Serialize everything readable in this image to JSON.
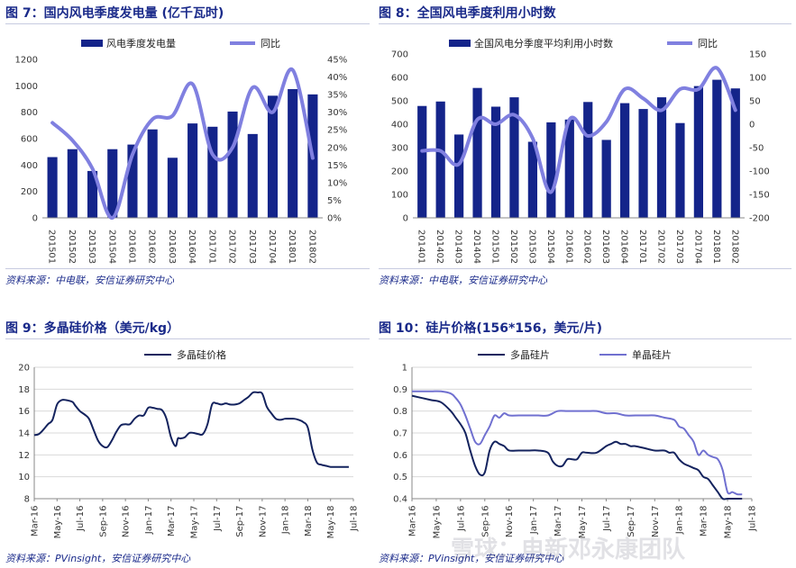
{
  "panels": {
    "fig7": {
      "title": "图 7：国内风电季度发电量 (亿千瓦时)",
      "source": "资料来源：中电联，安信证券研究中心"
    },
    "fig8": {
      "title": "图 8：全国风电季度利用小时数",
      "source": "资料来源：中电联，安信证券研究中心"
    },
    "fig9": {
      "title": "图 9：多晶硅价格（美元/kg）",
      "source": "资料来源：PVinsight，安信证券研究中心"
    },
    "fig10": {
      "title": "图 10：硅片价格(156*156，美元/片)",
      "source": "资料来源：PVinsight，安信证券研究中心"
    }
  },
  "watermark": "雪球：电新邓永康团队",
  "colors": {
    "bar": "#14248a",
    "line_light": "#8080e0",
    "line_dark": "#14235e",
    "line_mid": "#7070d0",
    "grid": "#d9d9d9"
  },
  "chart_data": [
    {
      "id": "fig7",
      "type": "bar",
      "categories": [
        "201501",
        "201502",
        "201503",
        "201504",
        "201601",
        "201602",
        "201603",
        "201604",
        "201701",
        "201702",
        "201703",
        "201704",
        "201801",
        "201802"
      ],
      "series": [
        {
          "name": "风电季度发电量",
          "type": "bar",
          "axis": "left",
          "values": [
            460,
            520,
            355,
            520,
            555,
            670,
            455,
            715,
            690,
            805,
            635,
            925,
            975,
            935
          ]
        },
        {
          "name": "同比",
          "type": "line",
          "axis": "right",
          "values": [
            27,
            22,
            14,
            0,
            18,
            28,
            29,
            38,
            18,
            20,
            37,
            30,
            42,
            17
          ]
        }
      ],
      "ylim_left": [
        0,
        1200
      ],
      "yticks_left": [
        0,
        200,
        400,
        600,
        800,
        1000,
        1200
      ],
      "ylim_right": [
        0,
        45
      ],
      "yticks_right": [
        "0%",
        "5%",
        "10%",
        "15%",
        "20%",
        "25%",
        "30%",
        "35%",
        "40%",
        "45%"
      ]
    },
    {
      "id": "fig8",
      "type": "bar",
      "categories": [
        "201401",
        "201402",
        "201403",
        "201404",
        "201501",
        "201502",
        "201503",
        "201504",
        "201601",
        "201602",
        "201603",
        "201604",
        "201701",
        "201702",
        "201703",
        "201704",
        "201801",
        "201802"
      ],
      "series": [
        {
          "name": "全国风电分季度平均利用小时数",
          "type": "bar",
          "axis": "left",
          "values": [
            478,
            497,
            356,
            555,
            475,
            515,
            325,
            408,
            420,
            495,
            333,
            490,
            465,
            515,
            405,
            563,
            590,
            553
          ]
        },
        {
          "name": "同比",
          "type": "line",
          "axis": "right",
          "values": [
            -57,
            -57,
            -85,
            10,
            0,
            20,
            -30,
            -145,
            10,
            -25,
            5,
            75,
            55,
            30,
            75,
            75,
            120,
            30
          ]
        }
      ],
      "ylim_left": [
        0,
        700
      ],
      "yticks_left": [
        0,
        100,
        200,
        300,
        400,
        500,
        600,
        700
      ],
      "ylim_right": [
        -200,
        150
      ],
      "yticks_right": [
        "-200",
        "-150",
        "-100",
        "-50",
        "0",
        "50",
        "100",
        "150"
      ]
    },
    {
      "id": "fig9",
      "type": "line",
      "xlabels": [
        "Mar-16",
        "May-16",
        "Jul-16",
        "Sep-16",
        "Nov-16",
        "Jan-17",
        "Mar-17",
        "May-17",
        "Jul-17",
        "Sep-17",
        "Nov-17",
        "Jan-18",
        "Mar-18",
        "May-18",
        "Jul-18"
      ],
      "series": [
        {
          "name": "多晶硅价格",
          "x": [
            0,
            2,
            4,
            6,
            8,
            10,
            12,
            14,
            16,
            17,
            18,
            20,
            22,
            24,
            26,
            28,
            30,
            32,
            34,
            36,
            38,
            40,
            42,
            44,
            46,
            48,
            50,
            52,
            54,
            56,
            58,
            60,
            62,
            63,
            64,
            66,
            68,
            70,
            72,
            74,
            76,
            78,
            80,
            82,
            84,
            86,
            88,
            90,
            92,
            94,
            96,
            98,
            100,
            102,
            104,
            106,
            108,
            110,
            112,
            114,
            116,
            118,
            120,
            122,
            124,
            126,
            128,
            130,
            132,
            134,
            136,
            138
          ],
          "values": [
            13.8,
            13.9,
            14.3,
            14.8,
            15.2,
            16.6,
            17.0,
            17.0,
            16.9,
            16.8,
            16.5,
            16.0,
            15.7,
            15.3,
            14.3,
            13.3,
            12.8,
            12.7,
            13.3,
            14.1,
            14.7,
            14.8,
            14.8,
            15.3,
            15.6,
            15.6,
            16.3,
            16.3,
            16.2,
            16.1,
            15.3,
            13.6,
            12.8,
            13.5,
            13.5,
            13.6,
            14.0,
            14.0,
            13.9,
            13.9,
            14.8,
            16.6,
            16.7,
            16.6,
            16.7,
            16.6,
            16.6,
            16.7,
            17.0,
            17.3,
            17.7,
            17.7,
            17.6,
            16.4,
            15.8,
            15.3,
            15.2,
            15.3,
            15.3,
            15.3,
            15.2,
            15.0,
            14.5,
            12.5,
            11.3,
            11.1,
            11.0,
            10.9,
            10.9,
            10.9,
            10.9,
            10.9
          ]
        }
      ],
      "xlim": [
        0,
        140
      ],
      "ylim": [
        8,
        20
      ],
      "yticks": [
        8,
        10,
        12,
        14,
        16,
        18,
        20
      ]
    },
    {
      "id": "fig10",
      "type": "line",
      "xlabels": [
        "Mar-16",
        "May-16",
        "Jul-16",
        "Sep-16",
        "Nov-16",
        "Jan-17",
        "Mar-17",
        "May-17",
        "Jul-17",
        "Sep-17",
        "Nov-17",
        "Jan-18",
        "Mar-18",
        "May-18",
        "Jul-18"
      ],
      "series": [
        {
          "name": "多晶硅片",
          "color_key": "line_dark",
          "x": [
            0,
            4,
            8,
            12,
            16,
            18,
            20,
            22,
            24,
            26,
            28,
            30,
            32,
            34,
            36,
            38,
            40,
            44,
            48,
            52,
            56,
            58,
            60,
            62,
            64,
            66,
            68,
            70,
            72,
            76,
            80,
            82,
            84,
            86,
            88,
            90,
            92,
            96,
            100,
            104,
            106,
            108,
            110,
            112,
            114,
            116,
            118,
            120,
            122,
            124,
            126,
            128,
            130,
            132,
            134,
            136
          ],
          "values": [
            0.87,
            0.86,
            0.85,
            0.84,
            0.8,
            0.77,
            0.74,
            0.7,
            0.62,
            0.55,
            0.51,
            0.52,
            0.62,
            0.66,
            0.65,
            0.64,
            0.62,
            0.62,
            0.62,
            0.62,
            0.61,
            0.57,
            0.55,
            0.55,
            0.58,
            0.58,
            0.58,
            0.61,
            0.61,
            0.61,
            0.64,
            0.65,
            0.66,
            0.65,
            0.65,
            0.64,
            0.64,
            0.63,
            0.62,
            0.62,
            0.61,
            0.61,
            0.58,
            0.56,
            0.55,
            0.54,
            0.53,
            0.5,
            0.49,
            0.46,
            0.43,
            0.4,
            0.38,
            0.38,
            0.38,
            0.38
          ]
        },
        {
          "name": "单晶硅片",
          "color_key": "line_mid",
          "x": [
            0,
            4,
            8,
            12,
            16,
            18,
            20,
            22,
            24,
            26,
            28,
            30,
            32,
            34,
            36,
            38,
            40,
            44,
            48,
            52,
            56,
            60,
            64,
            68,
            72,
            76,
            80,
            84,
            88,
            92,
            96,
            100,
            104,
            108,
            110,
            112,
            114,
            116,
            118,
            120,
            122,
            124,
            126,
            128,
            130,
            132,
            134,
            136
          ],
          "values": [
            0.89,
            0.89,
            0.89,
            0.89,
            0.88,
            0.86,
            0.83,
            0.78,
            0.72,
            0.66,
            0.65,
            0.69,
            0.73,
            0.78,
            0.77,
            0.79,
            0.78,
            0.78,
            0.78,
            0.78,
            0.78,
            0.8,
            0.8,
            0.8,
            0.8,
            0.8,
            0.79,
            0.79,
            0.78,
            0.78,
            0.78,
            0.78,
            0.77,
            0.76,
            0.73,
            0.72,
            0.69,
            0.66,
            0.6,
            0.62,
            0.6,
            0.59,
            0.58,
            0.53,
            0.43,
            0.43,
            0.42,
            0.42
          ]
        }
      ],
      "xlim": [
        0,
        140
      ],
      "ylim": [
        0.4,
        1.0
      ],
      "yticks": [
        0.4,
        0.5,
        0.6,
        0.7,
        0.8,
        0.9,
        1.0
      ]
    }
  ]
}
